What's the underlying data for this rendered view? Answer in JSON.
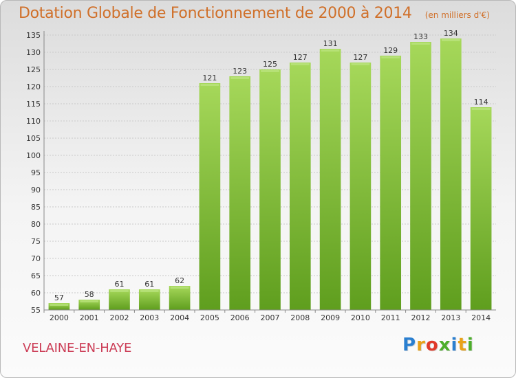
{
  "chart_data": {
    "type": "bar",
    "title": "Dotation Globale de Fonctionnement de 2000 à 2014",
    "unit_note": "(en milliers d'€)",
    "categories": [
      "2000",
      "2001",
      "2002",
      "2003",
      "2004",
      "2005",
      "2006",
      "2007",
      "2008",
      "2009",
      "2010",
      "2011",
      "2012",
      "2013",
      "2014"
    ],
    "values": [
      57,
      58,
      61,
      61,
      62,
      121,
      123,
      125,
      127,
      131,
      127,
      129,
      133,
      134,
      114
    ],
    "ylim": [
      55,
      135
    ],
    "yticks": [
      55,
      60,
      65,
      70,
      75,
      80,
      85,
      90,
      95,
      100,
      105,
      110,
      115,
      120,
      125,
      130,
      135
    ],
    "bar_color": "#7ab82a",
    "grid": true
  },
  "commune": "VELAINE-EN-HAYE",
  "logo": {
    "letters": [
      "P",
      "r",
      "o",
      "x",
      "i",
      "t",
      "i"
    ],
    "colors": [
      "#2a7fd0",
      "#e8a21a",
      "#e03a2a",
      "#4cae2a",
      "#2a7fd0",
      "#e8a21a",
      "#4cae2a"
    ]
  }
}
